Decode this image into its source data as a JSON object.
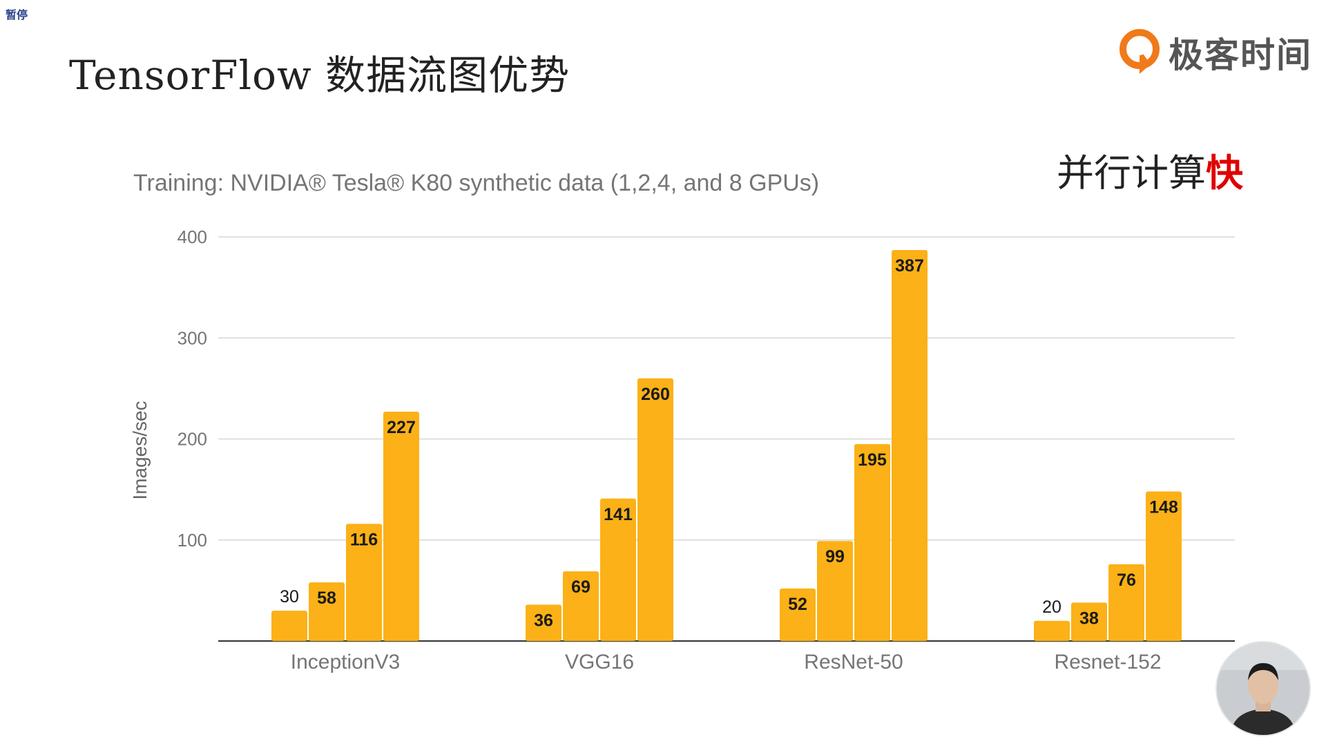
{
  "overlay": {
    "pause_label": "暂停"
  },
  "slide": {
    "title": "TensorFlow 数据流图优势",
    "tagline_main": "并行计算",
    "tagline_accent": "快"
  },
  "brand": {
    "name": "极客时间",
    "logo_icon": "geektime-logo-icon"
  },
  "colors": {
    "bar": "#fbb117",
    "grid": "#d6d6d6",
    "axis_text": "#757575",
    "accent": "#e00000"
  },
  "chart_data": {
    "type": "bar",
    "title": "Training: NVIDIA® Tesla® K80 synthetic data (1,2,4, and 8 GPUs)",
    "xlabel": "",
    "ylabel": "Images/sec",
    "ylim": [
      0,
      400
    ],
    "yticks": [
      100,
      200,
      300,
      400
    ],
    "grid": true,
    "legend": "none",
    "categories": [
      "InceptionV3",
      "VGG16",
      "ResNet-50",
      "Resnet-152"
    ],
    "values": [
      [
        30,
        58,
        116,
        227
      ],
      [
        36,
        69,
        141,
        260
      ],
      [
        52,
        99,
        195,
        387
      ],
      [
        20,
        38,
        76,
        148
      ]
    ]
  }
}
